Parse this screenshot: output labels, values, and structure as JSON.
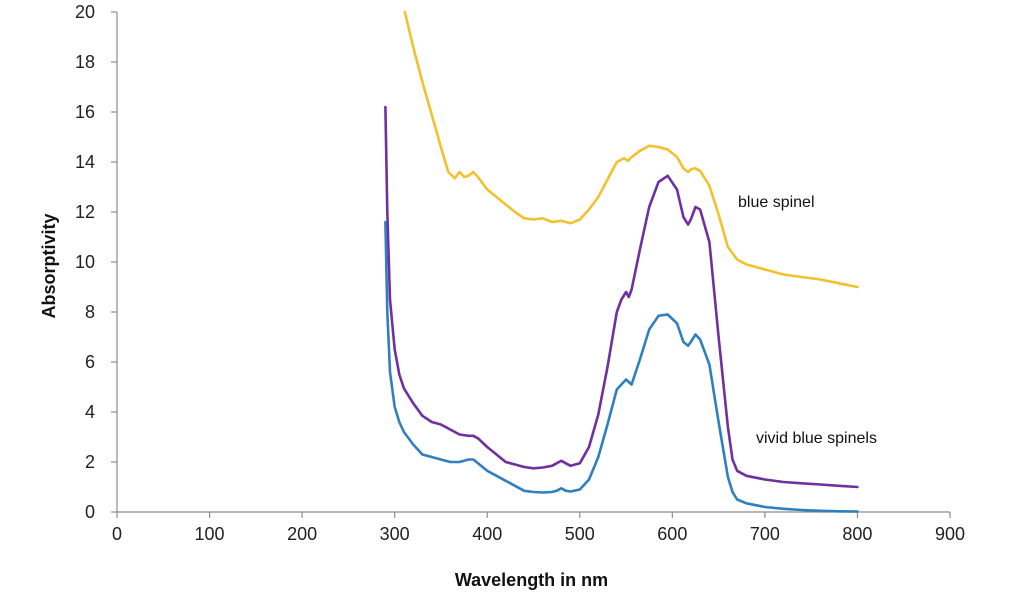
{
  "chart_data": {
    "type": "line",
    "title": "",
    "xlabel": "Wavelength in nm",
    "ylabel": "Absorptivity",
    "xlim": [
      0,
      900
    ],
    "ylim": [
      0,
      20
    ],
    "xticks": [
      0,
      100,
      200,
      300,
      400,
      500,
      600,
      700,
      800,
      900
    ],
    "yticks": [
      0,
      2,
      4,
      6,
      8,
      10,
      12,
      14,
      16,
      18,
      20
    ],
    "grid": false,
    "legend": "none",
    "annotations": [
      {
        "text": "blue spinel",
        "series_index": 0
      },
      {
        "text": "vivid blue spinels",
        "series_index": 1
      }
    ],
    "series": [
      {
        "color": "#f2c12e",
        "points": [
          [
            311,
            20
          ],
          [
            320,
            18.6
          ],
          [
            330,
            17.2
          ],
          [
            340,
            15.9
          ],
          [
            350,
            14.6
          ],
          [
            358,
            13.6
          ],
          [
            365,
            13.35
          ],
          [
            370,
            13.6
          ],
          [
            375,
            13.4
          ],
          [
            380,
            13.45
          ],
          [
            385,
            13.6
          ],
          [
            390,
            13.4
          ],
          [
            400,
            12.9
          ],
          [
            410,
            12.6
          ],
          [
            420,
            12.3
          ],
          [
            430,
            12.0
          ],
          [
            440,
            11.75
          ],
          [
            450,
            11.7
          ],
          [
            460,
            11.75
          ],
          [
            470,
            11.6
          ],
          [
            480,
            11.65
          ],
          [
            490,
            11.55
          ],
          [
            500,
            11.7
          ],
          [
            510,
            12.1
          ],
          [
            520,
            12.6
          ],
          [
            530,
            13.3
          ],
          [
            540,
            14.0
          ],
          [
            548,
            14.15
          ],
          [
            552,
            14.05
          ],
          [
            556,
            14.2
          ],
          [
            565,
            14.45
          ],
          [
            575,
            14.65
          ],
          [
            585,
            14.6
          ],
          [
            595,
            14.5
          ],
          [
            605,
            14.2
          ],
          [
            612,
            13.75
          ],
          [
            617,
            13.6
          ],
          [
            620,
            13.7
          ],
          [
            625,
            13.75
          ],
          [
            630,
            13.65
          ],
          [
            640,
            13.05
          ],
          [
            650,
            11.9
          ],
          [
            660,
            10.6
          ],
          [
            670,
            10.1
          ],
          [
            680,
            9.9
          ],
          [
            700,
            9.7
          ],
          [
            720,
            9.5
          ],
          [
            740,
            9.4
          ],
          [
            760,
            9.3
          ],
          [
            780,
            9.15
          ],
          [
            800,
            9.0
          ]
        ]
      },
      {
        "color": "#7030a0",
        "points": [
          [
            290,
            16.2
          ],
          [
            292,
            12.0
          ],
          [
            295,
            8.5
          ],
          [
            300,
            6.5
          ],
          [
            305,
            5.5
          ],
          [
            310,
            4.95
          ],
          [
            320,
            4.35
          ],
          [
            330,
            3.85
          ],
          [
            340,
            3.6
          ],
          [
            350,
            3.5
          ],
          [
            360,
            3.3
          ],
          [
            370,
            3.1
          ],
          [
            380,
            3.05
          ],
          [
            385,
            3.05
          ],
          [
            390,
            2.95
          ],
          [
            400,
            2.6
          ],
          [
            410,
            2.3
          ],
          [
            420,
            2.0
          ],
          [
            430,
            1.9
          ],
          [
            440,
            1.8
          ],
          [
            450,
            1.75
          ],
          [
            460,
            1.78
          ],
          [
            470,
            1.85
          ],
          [
            475,
            1.95
          ],
          [
            480,
            2.05
          ],
          [
            485,
            1.95
          ],
          [
            490,
            1.85
          ],
          [
            500,
            1.95
          ],
          [
            510,
            2.6
          ],
          [
            520,
            3.9
          ],
          [
            530,
            5.8
          ],
          [
            540,
            8.0
          ],
          [
            545,
            8.5
          ],
          [
            550,
            8.8
          ],
          [
            553,
            8.6
          ],
          [
            556,
            8.9
          ],
          [
            565,
            10.5
          ],
          [
            575,
            12.2
          ],
          [
            585,
            13.2
          ],
          [
            595,
            13.45
          ],
          [
            605,
            12.9
          ],
          [
            612,
            11.8
          ],
          [
            617,
            11.5
          ],
          [
            620,
            11.7
          ],
          [
            625,
            12.2
          ],
          [
            630,
            12.1
          ],
          [
            640,
            10.8
          ],
          [
            650,
            7.0
          ],
          [
            660,
            3.4
          ],
          [
            665,
            2.1
          ],
          [
            670,
            1.65
          ],
          [
            680,
            1.45
          ],
          [
            700,
            1.3
          ],
          [
            720,
            1.2
          ],
          [
            740,
            1.15
          ],
          [
            760,
            1.1
          ],
          [
            780,
            1.05
          ],
          [
            800,
            1.0
          ]
        ]
      },
      {
        "color": "#2f7fc1",
        "points": [
          [
            290,
            11.6
          ],
          [
            292,
            8.0
          ],
          [
            295,
            5.6
          ],
          [
            300,
            4.2
          ],
          [
            305,
            3.6
          ],
          [
            310,
            3.2
          ],
          [
            320,
            2.7
          ],
          [
            330,
            2.3
          ],
          [
            340,
            2.2
          ],
          [
            350,
            2.1
          ],
          [
            360,
            2.0
          ],
          [
            370,
            2.0
          ],
          [
            380,
            2.1
          ],
          [
            385,
            2.1
          ],
          [
            390,
            1.95
          ],
          [
            400,
            1.65
          ],
          [
            410,
            1.45
          ],
          [
            420,
            1.25
          ],
          [
            430,
            1.05
          ],
          [
            440,
            0.85
          ],
          [
            450,
            0.8
          ],
          [
            460,
            0.78
          ],
          [
            470,
            0.8
          ],
          [
            475,
            0.85
          ],
          [
            480,
            0.95
          ],
          [
            485,
            0.85
          ],
          [
            490,
            0.82
          ],
          [
            500,
            0.9
          ],
          [
            510,
            1.3
          ],
          [
            520,
            2.2
          ],
          [
            530,
            3.5
          ],
          [
            540,
            4.9
          ],
          [
            545,
            5.1
          ],
          [
            550,
            5.3
          ],
          [
            553,
            5.2
          ],
          [
            556,
            5.1
          ],
          [
            565,
            6.1
          ],
          [
            575,
            7.3
          ],
          [
            585,
            7.85
          ],
          [
            595,
            7.9
          ],
          [
            605,
            7.55
          ],
          [
            612,
            6.8
          ],
          [
            617,
            6.65
          ],
          [
            620,
            6.8
          ],
          [
            625,
            7.1
          ],
          [
            630,
            6.9
          ],
          [
            640,
            5.9
          ],
          [
            650,
            3.6
          ],
          [
            660,
            1.4
          ],
          [
            665,
            0.8
          ],
          [
            670,
            0.5
          ],
          [
            680,
            0.35
          ],
          [
            700,
            0.2
          ],
          [
            720,
            0.13
          ],
          [
            740,
            0.08
          ],
          [
            760,
            0.05
          ],
          [
            780,
            0.03
          ],
          [
            800,
            0.02
          ]
        ]
      }
    ]
  }
}
